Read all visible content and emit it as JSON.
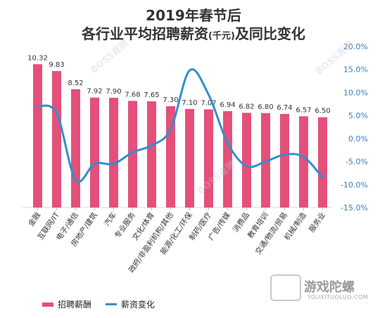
{
  "title_line1": "2019年春节后",
  "title_line2_main": "各行业平均招聘薪资",
  "title_line2_unit": "(千元)",
  "title_line2_tail": "及同比变化",
  "watermarks": {
    "boss": "BOSS直聘",
    "logo_main": "游戏陀螺",
    "logo_sub": "YOUXITUOLUO.COM"
  },
  "colors": {
    "bar": "#e4507a",
    "line": "#2f8fce",
    "axis_text": "#3a7fc1"
  },
  "chart_data": {
    "type": "bar+line",
    "categories": [
      "金融",
      "互联网/IT",
      "电子/通信",
      "房地产/建筑",
      "汽车",
      "专业服务",
      "文化/体育",
      "政府/非盈利机构/其他",
      "能源/化工/环保",
      "制药/医疗",
      "广告/传媒",
      "消费品",
      "教育培训",
      "交通/物流/贸易",
      "机械/制造",
      "服务业"
    ],
    "series": [
      {
        "name": "招聘薪酬",
        "type": "bar",
        "axis": "left",
        "values": [
          10.32,
          9.83,
          8.52,
          7.92,
          7.9,
          7.68,
          7.65,
          7.3,
          7.1,
          7.07,
          6.94,
          6.82,
          6.8,
          6.74,
          6.57,
          6.5
        ],
        "labels": [
          "10.32",
          "9.83",
          "8.52",
          "7.92",
          "7.90",
          "7.68",
          "7.65",
          "7.30",
          "7.10",
          "7.07",
          "6.94",
          "6.82",
          "6.80",
          "6.74",
          "6.57",
          "6.50"
        ]
      },
      {
        "name": "薪资变化",
        "type": "line",
        "axis": "right",
        "values": [
          7.0,
          5.5,
          -9.0,
          -5.5,
          -5.5,
          -3.0,
          -1.5,
          2.0,
          14.8,
          9.5,
          -1.0,
          -6.0,
          -5.0,
          -3.5,
          -4.0,
          -8.5
        ]
      }
    ],
    "y_left_range": [
      0,
      11.6
    ],
    "y_right": {
      "range": [
        -15,
        20
      ],
      "ticks": [
        20,
        15,
        10,
        5,
        0,
        -5,
        -10,
        -15
      ],
      "tick_labels": [
        "20.0%",
        "15.0%",
        "10.0%",
        "5.0%",
        "0.0%",
        "-5.0%",
        "-10.0%",
        "-15.0%"
      ]
    },
    "legend_position": "bottom-left"
  }
}
